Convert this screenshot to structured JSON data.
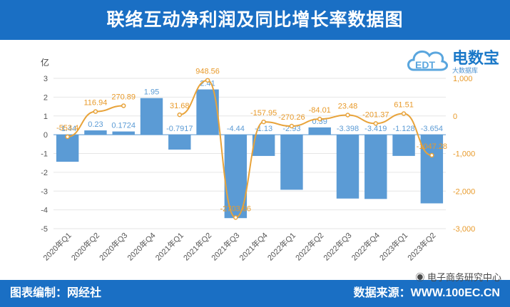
{
  "title": "联络互动净利润及同比增长率数据图",
  "footer": {
    "left": "图表编制：网经社",
    "right": "数据来源：WWW.100EC.CN",
    "wechat": "电子商务研究中心"
  },
  "logo": {
    "text": "电数宝",
    "sub": "大数据库",
    "mark": "EDT"
  },
  "colors": {
    "bar": "#5b9bd5",
    "line": "#e8a33a",
    "bar_label": "#5b9bd5",
    "line_label": "#e89a2a",
    "header": "#1a6fc4"
  },
  "chart_data": {
    "type": "bar",
    "title": "联络互动净利润及同比增长率数据图",
    "categories": [
      "2020年Q1",
      "2020年Q2",
      "2020年Q3",
      "2020年Q4",
      "2021年Q1",
      "2021年Q2",
      "2021年Q3",
      "2021年Q4",
      "2022年Q1",
      "2022年Q2",
      "2022年Q3",
      "2022年Q4",
      "2023年Q1",
      "2023年Q2"
    ],
    "left_axis": {
      "unit": "亿",
      "ylim": [
        -5,
        3
      ],
      "ticks": [
        3,
        2,
        1,
        0,
        -1,
        -2,
        -3,
        -4,
        -5
      ]
    },
    "right_axis": {
      "ylim": [
        -3000,
        1000
      ],
      "ticks": [
        1000,
        0,
        -1000,
        -2000,
        -3000
      ],
      "tick_labels": [
        "1,000",
        "0",
        "-1,000",
        "-2,000",
        "-3,000"
      ]
    },
    "series": [
      {
        "name": "净利润",
        "type": "bar",
        "axis": "left",
        "values": [
          -1.44,
          0.23,
          0.1724,
          1.95,
          -0.7917,
          2.41,
          -4.44,
          -1.13,
          -2.93,
          0.39,
          -3.398,
          -3.419,
          -1.128,
          -3.654
        ],
        "labels": [
          "-1.44",
          "0.23",
          "0.1724",
          "1.95",
          "-0.7917",
          "2.41",
          "-4.44",
          "-1.13",
          "-2.93",
          "0.39",
          "-3.398",
          "-3.419",
          "-1.128",
          "-3.654"
        ]
      },
      {
        "name": "同比增长率",
        "type": "line",
        "axis": "right",
        "values": [
          -553.4,
          116.94,
          270.89,
          null,
          31.68,
          948.56,
          -2703.66,
          -157.95,
          -270.26,
          -84.01,
          23.48,
          -201.37,
          61.51,
          -1047.28
        ],
        "labels": [
          "-553.4",
          "116.94",
          "270.89",
          "",
          "31.68",
          "948.56",
          "-2703.66",
          "-157.95",
          "-270.26",
          "-84.01",
          "23.48",
          "-201.37",
          "61.51",
          "-1047.28"
        ]
      }
    ]
  }
}
